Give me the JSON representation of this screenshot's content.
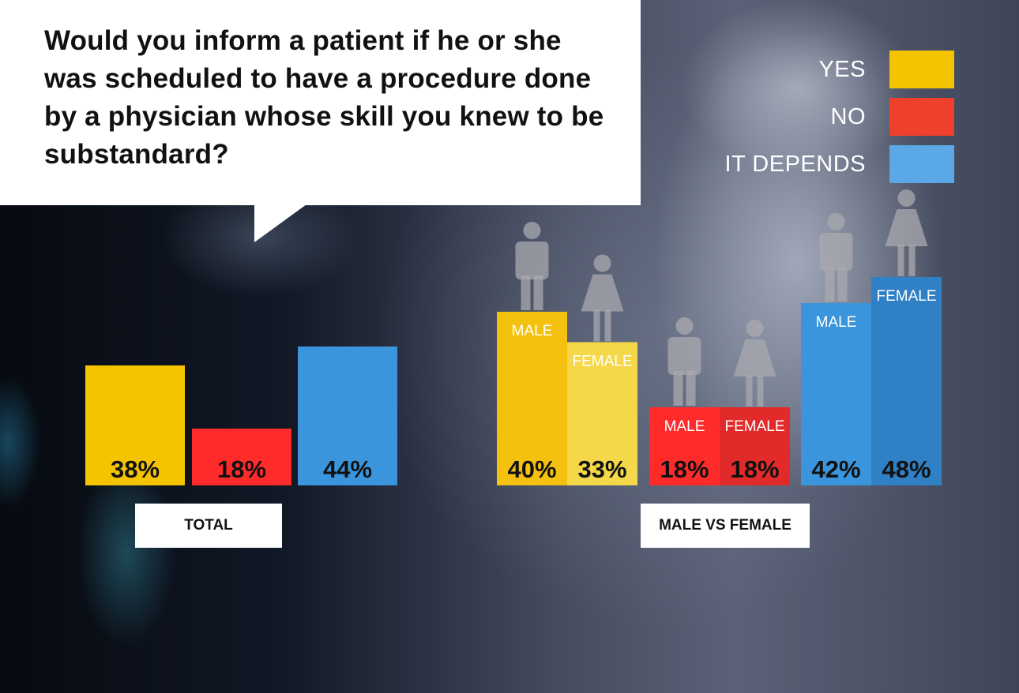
{
  "question": "Would you inform a patient if he or she was scheduled to have a procedure done by a physician whose skill you knew to be substandard?",
  "legend": [
    {
      "label": "YES",
      "color": "#f5c400"
    },
    {
      "label": "NO",
      "color": "#f0402c"
    },
    {
      "label": "IT DEPENDS",
      "color": "#5aa8e6"
    }
  ],
  "chart_data": [
    {
      "type": "bar",
      "group_label": "TOTAL",
      "categories": [
        "YES",
        "NO",
        "IT DEPENDS"
      ],
      "values": [
        38,
        18,
        44
      ],
      "value_labels": [
        "38%",
        "18%",
        "44%"
      ],
      "colors": [
        "#f5c400",
        "#ff2a2a",
        "#3b95dc"
      ],
      "unit": "%"
    },
    {
      "type": "bar",
      "group_label": "MALE VS FEMALE",
      "categories": [
        "YES",
        "NO",
        "IT DEPENDS"
      ],
      "series": [
        {
          "name": "MALE",
          "values": [
            40,
            18,
            42
          ],
          "value_labels": [
            "40%",
            "18%",
            "42%"
          ],
          "colors": [
            "#f5c10f",
            "#ff2a2a",
            "#3b95dc"
          ]
        },
        {
          "name": "FEMALE",
          "values": [
            33,
            18,
            48
          ],
          "value_labels": [
            "33%",
            "18%",
            "48%"
          ],
          "colors": [
            "#f4d84a",
            "#e32a2a",
            "#2f80c4"
          ]
        }
      ],
      "unit": "%"
    }
  ]
}
